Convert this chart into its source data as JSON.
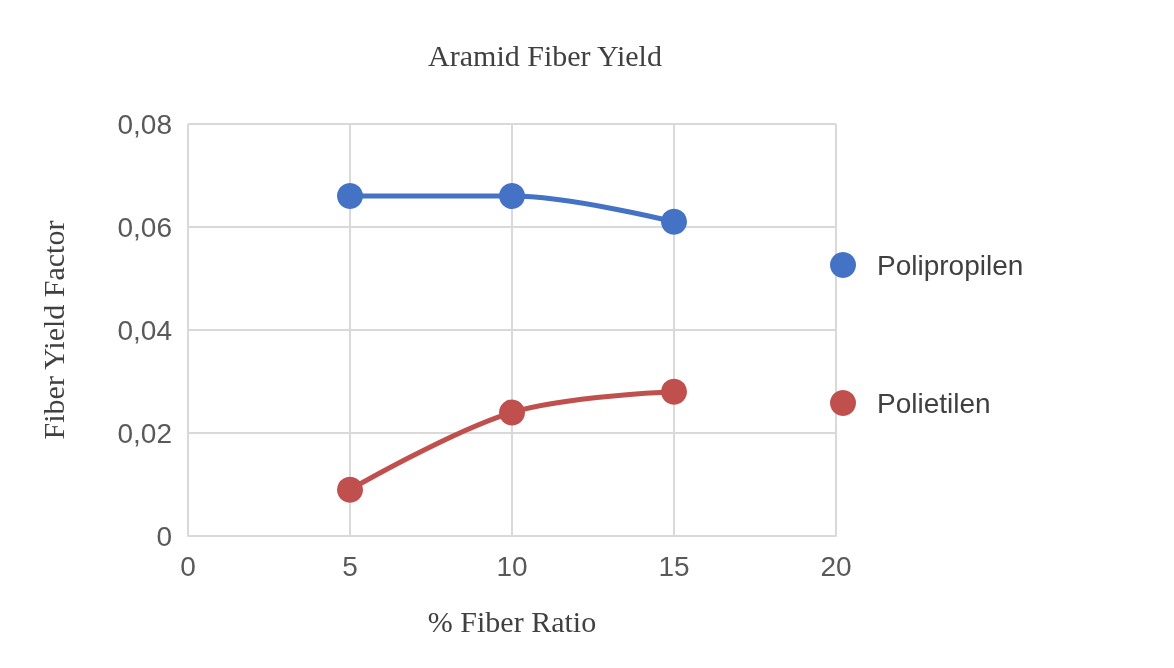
{
  "chart_data": {
    "type": "line",
    "title": "Aramid Fiber Yield",
    "xlabel": "% Fiber Ratio",
    "ylabel": "Fiber Yield Factor",
    "x": [
      5,
      10,
      15
    ],
    "series": [
      {
        "name": "Polipropilen",
        "color": "#4472c4",
        "values": [
          0.066,
          0.066,
          0.061
        ]
      },
      {
        "name": "Polietilen",
        "color": "#c0504d",
        "values": [
          0.009,
          0.024,
          0.028
        ]
      }
    ],
    "xlim": [
      0,
      20
    ],
    "xticks": [
      0,
      5,
      10,
      15,
      20
    ],
    "ylim": [
      0,
      0.08
    ],
    "yticks": [
      {
        "value": 0,
        "label": "0"
      },
      {
        "value": 0.02,
        "label": "0,02"
      },
      {
        "value": 0.04,
        "label": "0,04"
      },
      {
        "value": 0.06,
        "label": "0,06"
      },
      {
        "value": 0.08,
        "label": "0,08"
      }
    ],
    "grid": true,
    "legend": "right",
    "marker": "circle",
    "line_style": "solid"
  }
}
